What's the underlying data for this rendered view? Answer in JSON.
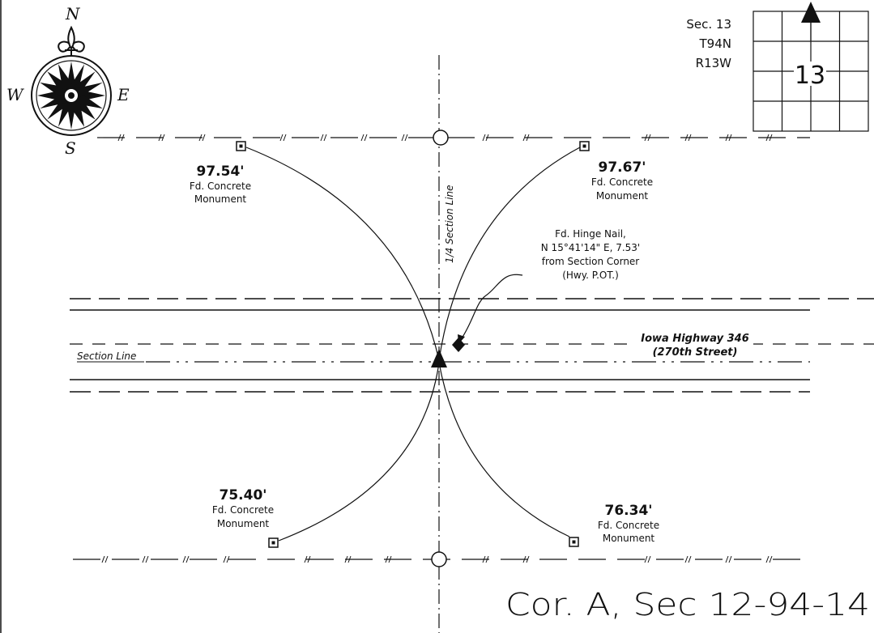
{
  "compass": {
    "north": "N",
    "south": "S",
    "east": "E",
    "west": "W"
  },
  "section_inset": {
    "line1": "Sec. 13",
    "line2": "T94N",
    "line3": "R13W",
    "number": "13"
  },
  "quarter_section_line_label": "1/4 Section Line",
  "section_line_label": "Section Line",
  "highway": {
    "line1": "Iowa Highway 346",
    "line2": "(270th Street)"
  },
  "hinge_nail": {
    "line1": "Fd. Hinge Nail,",
    "line2": "N 15°41'14\" E, 7.53'",
    "line3": "from Section Corner",
    "line4": "(Hwy. P.OT.)"
  },
  "monuments": {
    "nw": {
      "distance": "97.54'",
      "line1": "Fd. Concrete",
      "line2": "Monument"
    },
    "ne": {
      "distance": "97.67'",
      "line1": "Fd. Concrete",
      "line2": "Monument"
    },
    "sw": {
      "distance": "75.40'",
      "line1": "Fd. Concrete",
      "line2": "Monument"
    },
    "se": {
      "distance": "76.34'",
      "line1": "Fd. Concrete",
      "line2": "Monument"
    }
  },
  "handwritten_note": "Cor. A, Sec 12-94-14"
}
